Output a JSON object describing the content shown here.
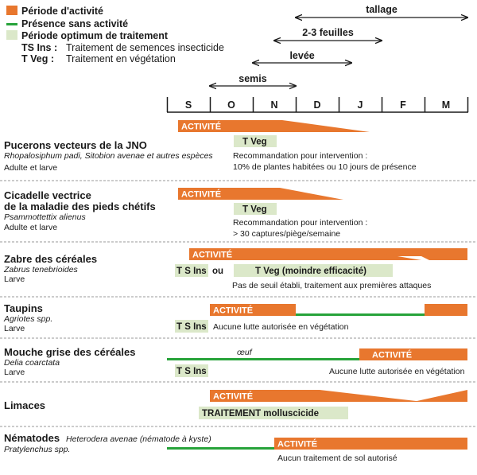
{
  "colors": {
    "activity": "#e8772e",
    "presence": "#27a33a",
    "optimum": "#dbe8c9",
    "divider": "#9a9a9a",
    "text": "#1a1a1a"
  },
  "legend": {
    "activity_label": "Période d'activité",
    "presence_label": "Présence sans activité",
    "optimum_label": "Période optimum de traitement",
    "ts_ins_abbr": "TS Ins :",
    "ts_ins_desc": "Traitement de semences insecticide",
    "t_veg_abbr": "T Veg :",
    "t_veg_desc": "Traitement  en végétation"
  },
  "crop_stages": [
    {
      "label": "tallage",
      "start_month": 3,
      "end_month": 7
    },
    {
      "label": "2-3 feuilles",
      "start_month": 2.5,
      "end_month": 5
    },
    {
      "label": "levée",
      "start_month": 2,
      "end_month": 4.3
    },
    {
      "label": "semis",
      "start_month": 1,
      "end_month": 3
    }
  ],
  "months": [
    "S",
    "O",
    "N",
    "D",
    "J",
    "F",
    "M"
  ],
  "pests": [
    {
      "name": "Pucerons vecteurs de la JNO",
      "latin": "Rhopalosiphum padi, Sitobion avenae et autres espèces",
      "stage": "Adulte et larve",
      "activity_label": "ACTIVITÉ",
      "treatment": "T Veg",
      "note_line1": "Recommandation pour intervention  :",
      "note_line2": "10% de plantes habitées ou 10 jours de présence"
    },
    {
      "name_line1": "Cicadelle vectrice",
      "name_line2": "de la maladie des pieds chétifs",
      "latin": "Psammottettix alienus",
      "stage": "Adulte et larve",
      "activity_label": "ACTIVITÉ",
      "treatment": "T Veg",
      "note_line1": "Recommandation pour intervention  :",
      "note_line2": "> 30 captures/piège/semaine"
    },
    {
      "name": "Zabre des céréales",
      "latin": "Zabrus tenebrioides",
      "stage": "Larve",
      "activity_label": "ACTIVITÉ",
      "treatment_a": "T S Ins",
      "connector": "ou",
      "treatment_b": "T Veg (moindre efficacité)",
      "note": "Pas de seuil établi, traitement aux premières attaques"
    },
    {
      "name": "Taupins",
      "latin": "Agriotes spp.",
      "stage": "Larve",
      "activity_label": "ACTIVITÉ",
      "treatment": "T S Ins",
      "note": "Aucune lutte autorisée en végétation"
    },
    {
      "name": "Mouche grise des céréales",
      "latin": "Delia coarctata",
      "stage": "Larve",
      "presence_label": "œuf",
      "activity_label": "ACTIVITÉ",
      "treatment": "T S Ins",
      "note": "Aucune lutte autorisée en végétation"
    },
    {
      "name": "Limaces",
      "activity_label": "ACTIVITÉ",
      "treatment": "TRAITEMENT molluscicide"
    },
    {
      "name": "Nématodes",
      "latin_inline": "Heterodera avenae (nématode à kyste)",
      "latin": "Pratylenchus spp.",
      "activity_label": "ACTIVITÉ",
      "note": "Aucun traitement de sol autorisé"
    }
  ]
}
